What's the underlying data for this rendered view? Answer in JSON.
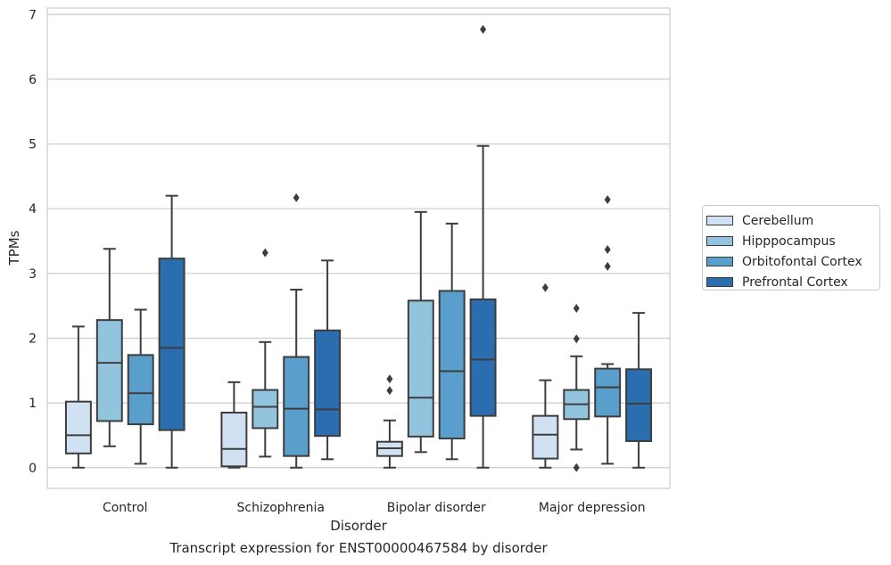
{
  "chart_data": {
    "type": "box",
    "xlabel": "Disorder",
    "ylabel": "TPMs",
    "ylim": [
      -0.32,
      7.1
    ],
    "yticks": [
      0,
      1,
      2,
      3,
      4,
      5,
      6,
      7
    ],
    "grid": true,
    "legend_placement": "right",
    "categories": [
      "Control",
      "Schizophrenia",
      "Bipolar disorder",
      "Major depression"
    ],
    "series": [
      {
        "name": "Cerebellum",
        "color": "#cfe1f2",
        "boxes": [
          {
            "whislo": 0.0,
            "q1": 0.22,
            "med": 0.5,
            "q3": 1.02,
            "whishi": 2.18,
            "fliers": []
          },
          {
            "whislo": 0.0,
            "q1": 0.02,
            "med": 0.29,
            "q3": 0.85,
            "whishi": 1.32,
            "fliers": []
          },
          {
            "whislo": 0.0,
            "q1": 0.18,
            "med": 0.3,
            "q3": 0.4,
            "whishi": 0.73,
            "fliers": [
              1.19,
              1.37
            ]
          },
          {
            "whislo": 0.0,
            "q1": 0.14,
            "med": 0.51,
            "q3": 0.8,
            "whishi": 1.35,
            "fliers": [
              2.78
            ]
          }
        ]
      },
      {
        "name": "Hipppocampus",
        "color": "#93c4de",
        "boxes": [
          {
            "whislo": 0.33,
            "q1": 0.72,
            "med": 1.62,
            "q3": 2.28,
            "whishi": 3.38,
            "fliers": []
          },
          {
            "whislo": 0.17,
            "q1": 0.61,
            "med": 0.94,
            "q3": 1.2,
            "whishi": 1.94,
            "fliers": [
              3.32
            ]
          },
          {
            "whislo": 0.24,
            "q1": 0.48,
            "med": 1.08,
            "q3": 2.58,
            "whishi": 3.95,
            "fliers": []
          },
          {
            "whislo": 0.28,
            "q1": 0.75,
            "med": 0.98,
            "q3": 1.2,
            "whishi": 1.72,
            "fliers": [
              0.0,
              1.99,
              2.46
            ]
          }
        ]
      },
      {
        "name": "Orbitofontal Cortex",
        "color": "#5a9ecc",
        "boxes": [
          {
            "whislo": 0.06,
            "q1": 0.67,
            "med": 1.15,
            "q3": 1.74,
            "whishi": 2.44,
            "fliers": []
          },
          {
            "whislo": 0.0,
            "q1": 0.18,
            "med": 0.91,
            "q3": 1.71,
            "whishi": 2.75,
            "fliers": [
              4.17
            ]
          },
          {
            "whislo": 0.13,
            "q1": 0.45,
            "med": 1.49,
            "q3": 2.73,
            "whishi": 3.77,
            "fliers": []
          },
          {
            "whislo": 0.06,
            "q1": 0.79,
            "med": 1.24,
            "q3": 1.53,
            "whishi": 1.6,
            "fliers": [
              3.11,
              3.37,
              4.14
            ]
          }
        ]
      },
      {
        "name": "Prefrontal Cortex",
        "color": "#2a6eb0",
        "boxes": [
          {
            "whislo": 0.0,
            "q1": 0.58,
            "med": 1.85,
            "q3": 3.23,
            "whishi": 4.2,
            "fliers": []
          },
          {
            "whislo": 0.13,
            "q1": 0.49,
            "med": 0.9,
            "q3": 2.12,
            "whishi": 3.2,
            "fliers": []
          },
          {
            "whislo": 0.0,
            "q1": 0.8,
            "med": 1.67,
            "q3": 2.6,
            "whishi": 4.97,
            "fliers": [
              6.77
            ]
          },
          {
            "whislo": 0.0,
            "q1": 0.41,
            "med": 0.99,
            "q3": 1.52,
            "whishi": 2.39,
            "fliers": []
          }
        ]
      }
    ]
  },
  "caption": "Transcript expression for ENST00000467584 by disorder"
}
